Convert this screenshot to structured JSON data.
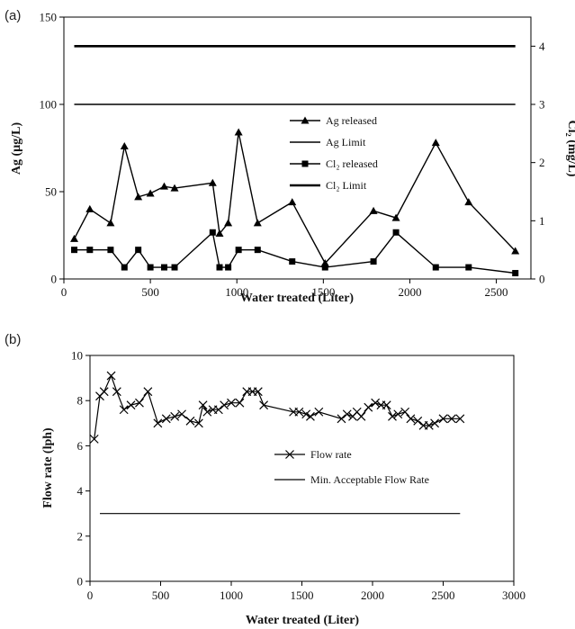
{
  "chart_data": [
    {
      "type": "line",
      "panel_label": "(a)",
      "xlabel": "Water treated (Liter)",
      "ylabel": "Ag (µg/L)",
      "y2label": "Cl₂ (mg/L)",
      "xlim": [
        0,
        2700
      ],
      "ylim": [
        0,
        150
      ],
      "y2lim": [
        0,
        4.5
      ],
      "xticks": [
        0,
        500,
        1000,
        1500,
        2000,
        2500
      ],
      "yticks": [
        0,
        50,
        100,
        150
      ],
      "y2ticks": [
        0,
        1,
        2,
        3,
        4
      ],
      "legend_position": "center-right",
      "series": [
        {
          "name": "Ag released",
          "axis": "left",
          "marker": "triangle",
          "x": [
            60,
            150,
            270,
            350,
            430,
            500,
            580,
            640,
            860,
            900,
            950,
            1010,
            1120,
            1320,
            1510,
            1790,
            1920,
            2150,
            2340,
            2610
          ],
          "y": [
            23,
            40,
            32,
            76,
            47,
            49,
            53,
            52,
            55,
            26,
            32,
            84,
            32,
            44,
            9,
            39,
            35,
            78,
            44,
            16
          ]
        },
        {
          "name": "Ag Limit",
          "axis": "left",
          "marker": "none",
          "x": [
            60,
            2610
          ],
          "y": [
            100,
            100
          ]
        },
        {
          "name": "Cl₂ released",
          "axis": "right",
          "marker": "square",
          "x": [
            60,
            150,
            270,
            350,
            430,
            500,
            580,
            640,
            860,
            900,
            950,
            1010,
            1120,
            1320,
            1510,
            1790,
            1920,
            2150,
            2340,
            2610
          ],
          "y": [
            0.5,
            0.5,
            0.5,
            0.2,
            0.5,
            0.2,
            0.2,
            0.2,
            0.8,
            0.2,
            0.2,
            0.5,
            0.5,
            0.3,
            0.2,
            0.3,
            0.8,
            0.2,
            0.2,
            0.1
          ]
        },
        {
          "name": "Cl₂ Limit",
          "axis": "right",
          "marker": "none",
          "x": [
            60,
            2610
          ],
          "y": [
            4,
            4
          ]
        }
      ]
    },
    {
      "type": "line",
      "panel_label": "(b)",
      "xlabel": "Water treated (Liter)",
      "ylabel": "Flow rate (lph)",
      "xlim": [
        0,
        3000
      ],
      "ylim": [
        0,
        10
      ],
      "xticks": [
        0,
        500,
        1000,
        1500,
        2000,
        2500,
        3000
      ],
      "yticks": [
        0,
        2,
        4,
        6,
        8,
        10
      ],
      "legend_position": "center-right",
      "series": [
        {
          "name": "Flow rate",
          "marker": "x",
          "x": [
            30,
            70,
            100,
            150,
            190,
            240,
            290,
            350,
            410,
            480,
            540,
            600,
            650,
            710,
            770,
            800,
            830,
            870,
            910,
            950,
            1000,
            1060,
            1110,
            1150,
            1190,
            1230,
            1440,
            1480,
            1530,
            1560,
            1620,
            1780,
            1820,
            1860,
            1890,
            1920,
            1970,
            2020,
            2060,
            2100,
            2140,
            2180,
            2230,
            2270,
            2320,
            2360,
            2400,
            2440,
            2500,
            2560,
            2620
          ],
          "y": [
            6.3,
            8.2,
            8.4,
            9.1,
            8.4,
            7.6,
            7.8,
            7.9,
            8.4,
            7.0,
            7.2,
            7.3,
            7.4,
            7.1,
            7.0,
            7.8,
            7.5,
            7.6,
            7.6,
            7.8,
            7.9,
            7.9,
            8.4,
            8.4,
            8.4,
            7.8,
            7.5,
            7.5,
            7.4,
            7.3,
            7.5,
            7.2,
            7.4,
            7.3,
            7.5,
            7.3,
            7.7,
            7.9,
            7.8,
            7.8,
            7.3,
            7.4,
            7.5,
            7.2,
            7.1,
            6.9,
            6.9,
            7.0,
            7.2,
            7.2,
            7.2
          ]
        },
        {
          "name": "Min. Acceptable Flow Rate",
          "marker": "none",
          "x": [
            70,
            2620
          ],
          "y": [
            3,
            3
          ]
        }
      ]
    }
  ]
}
